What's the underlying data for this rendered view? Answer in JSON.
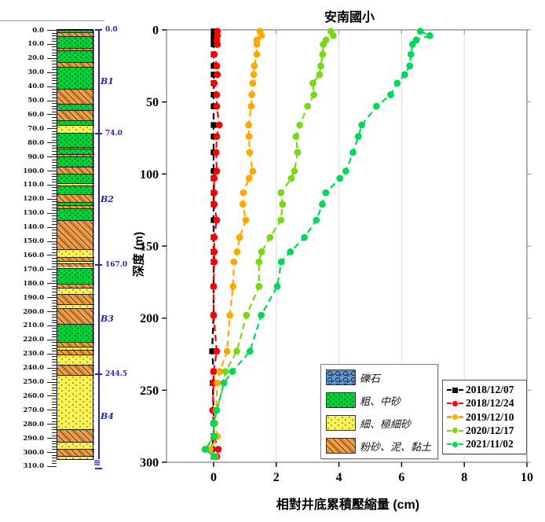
{
  "title": "安南國小",
  "chart_data": {
    "type": "line",
    "title": "安南國小",
    "xlabel": "相對井底累積壓縮量  (cm)",
    "ylabel": "深度 (m)",
    "xlim": [
      -1.5,
      10
    ],
    "ylim": [
      0,
      300
    ],
    "x_ticks": [
      0,
      2,
      4,
      6,
      8,
      10
    ],
    "y_ticks": [
      0,
      50,
      100,
      150,
      200,
      250,
      300
    ],
    "grid": "vertical gridlines only",
    "legend_position": "lower right",
    "orientation": "depth profile, depth increases downward",
    "depths_m": [
      1,
      4,
      7,
      10,
      17,
      25,
      31,
      37,
      45,
      53,
      66,
      74,
      85,
      98,
      103,
      113,
      121,
      132,
      144,
      154,
      161,
      178,
      198,
      223,
      237,
      245,
      264,
      273,
      282,
      291,
      296
    ],
    "series": [
      {
        "name": "2018/12/07",
        "color": "#000000",
        "marker": "square",
        "line": "dashed",
        "values": [
          0,
          0,
          0,
          0,
          0,
          0,
          0,
          0,
          0,
          0,
          0,
          0,
          0,
          0,
          0,
          0,
          0,
          0,
          0,
          0,
          0,
          0,
          0,
          -0.05,
          0,
          -0.03,
          0,
          0,
          0,
          -0.05,
          0
        ]
      },
      {
        "name": "2018/12/24",
        "color": "#ff0000",
        "marker": "circle",
        "line": "dashed",
        "values": [
          0.12,
          0.12,
          0.1,
          0.12,
          0.02,
          0.1,
          0.12,
          0.02,
          0.1,
          0.1,
          0.18,
          0.1,
          0.08,
          0.1,
          0.02,
          0.02,
          0.02,
          0.1,
          0.02,
          0.02,
          0.02,
          0,
          0,
          0.1,
          0,
          0,
          -0.03,
          0,
          0.02,
          0.15,
          0.1
        ]
      },
      {
        "name": "2019/12/10",
        "color": "#ffa800",
        "marker": "circle",
        "line": "dashed",
        "values": [
          1.48,
          1.53,
          1.38,
          1.38,
          1.38,
          1.3,
          1.28,
          1.25,
          1.22,
          1.2,
          1.12,
          1.13,
          1.15,
          1.25,
          1.13,
          0.95,
          0.93,
          1.03,
          0.83,
          0.75,
          0.65,
          0.62,
          0.52,
          0.43,
          0.2,
          0.12,
          0.08,
          0.05,
          0.12,
          -0.1,
          0.05
        ]
      },
      {
        "name": "2020/12/17",
        "color": "#77d916",
        "marker": "circle",
        "line": "dashed",
        "values": [
          3.74,
          3.82,
          3.59,
          3.5,
          3.48,
          3.42,
          3.38,
          3.17,
          3.2,
          3.0,
          2.75,
          2.63,
          2.68,
          2.58,
          2.48,
          2.15,
          2.2,
          2.15,
          1.8,
          1.53,
          1.45,
          1.45,
          1.05,
          0.74,
          0.38,
          0.33,
          0.1,
          0.02,
          0.02,
          -0.28,
          0.02
        ]
      },
      {
        "name": "2021/11/02",
        "color": "#00d957",
        "marker": "circle",
        "line": "dashed",
        "values": [
          6.6,
          6.9,
          6.47,
          6.35,
          6.3,
          6.26,
          6.1,
          5.86,
          5.65,
          5.2,
          4.73,
          4.62,
          4.45,
          4.22,
          4.03,
          3.58,
          3.47,
          3.28,
          2.9,
          2.45,
          2.16,
          2.03,
          1.52,
          1.16,
          0.6,
          0.33,
          0.1,
          0,
          0.02,
          -0.26,
          0.02
        ]
      }
    ]
  },
  "date_legend": [
    "2018/12/07",
    "2018/12/24",
    "2019/12/10",
    "2020/12/17",
    "2021/11/02"
  ],
  "borehole": {
    "max_depth_m": 310,
    "depth_label_step_m": 10,
    "minor_tick_step_m": 2,
    "zones": [
      {
        "label": "B1",
        "from": 0,
        "to": 74
      },
      {
        "label": "B2",
        "from": 74,
        "to": 167
      },
      {
        "label": "B3",
        "from": 167,
        "to": 244.5
      },
      {
        "label": "B4",
        "from": 244.5,
        "to": 305
      }
    ],
    "zone_boundary_labels": [
      "0.0",
      "74.0",
      "167.0",
      "244.5"
    ],
    "zone_boundaries_m": [
      0,
      74,
      167,
      244.5
    ],
    "lithology_legend": [
      {
        "label": "礫石",
        "type": "gravel"
      },
      {
        "label": "粗、中砂",
        "type": "coarse_sand"
      },
      {
        "label": "細、極細砂",
        "type": "fine_sand"
      },
      {
        "label": "粉砂、泥、黏土",
        "type": "silt_mud_clay"
      }
    ],
    "layers": [
      {
        "from": 0,
        "to": 1.5,
        "type": "coarse_sand"
      },
      {
        "from": 1.5,
        "to": 4.5,
        "type": "silt_mud_clay"
      },
      {
        "from": 4.5,
        "to": 13,
        "type": "coarse_sand"
      },
      {
        "from": 13,
        "to": 14.5,
        "type": "silt_mud_clay"
      },
      {
        "from": 14.5,
        "to": 23,
        "type": "coarse_sand"
      },
      {
        "from": 23,
        "to": 26.5,
        "type": "silt_mud_clay"
      },
      {
        "from": 26.5,
        "to": 42,
        "type": "coarse_sand"
      },
      {
        "from": 42,
        "to": 52.5,
        "type": "silt_mud_clay"
      },
      {
        "from": 52.5,
        "to": 57,
        "type": "coarse_sand"
      },
      {
        "from": 57,
        "to": 64,
        "type": "silt_mud_clay"
      },
      {
        "from": 64,
        "to": 67.5,
        "type": "coarse_sand"
      },
      {
        "from": 67.5,
        "to": 73,
        "type": "fine_sand"
      },
      {
        "from": 73,
        "to": 83,
        "type": "coarse_sand"
      },
      {
        "from": 83,
        "to": 84.5,
        "type": "silt_mud_clay"
      },
      {
        "from": 84.5,
        "to": 88,
        "type": "coarse_sand"
      },
      {
        "from": 88,
        "to": 90,
        "type": "silt_mud_clay"
      },
      {
        "from": 90,
        "to": 97,
        "type": "coarse_sand"
      },
      {
        "from": 97,
        "to": 102,
        "type": "silt_mud_clay"
      },
      {
        "from": 102,
        "to": 109,
        "type": "coarse_sand"
      },
      {
        "from": 109,
        "to": 110.5,
        "type": "fine_sand"
      },
      {
        "from": 110.5,
        "to": 117,
        "type": "coarse_sand"
      },
      {
        "from": 117,
        "to": 122.5,
        "type": "silt_mud_clay"
      },
      {
        "from": 122.5,
        "to": 124.5,
        "type": "coarse_sand"
      },
      {
        "from": 124.5,
        "to": 127,
        "type": "silt_mud_clay"
      },
      {
        "from": 127,
        "to": 135,
        "type": "coarse_sand"
      },
      {
        "from": 135,
        "to": 156,
        "type": "silt_mud_clay"
      },
      {
        "from": 156,
        "to": 161.5,
        "type": "fine_sand"
      },
      {
        "from": 161.5,
        "to": 164,
        "type": "silt_mud_clay"
      },
      {
        "from": 164,
        "to": 166,
        "type": "fine_sand"
      },
      {
        "from": 166,
        "to": 169,
        "type": "silt_mud_clay"
      },
      {
        "from": 169,
        "to": 180.5,
        "type": "coarse_sand"
      },
      {
        "from": 180.5,
        "to": 183.5,
        "type": "silt_mud_clay"
      },
      {
        "from": 183.5,
        "to": 187.5,
        "type": "fine_sand"
      },
      {
        "from": 187.5,
        "to": 195,
        "type": "silt_mud_clay"
      },
      {
        "from": 195,
        "to": 198,
        "type": "fine_sand"
      },
      {
        "from": 198,
        "to": 209,
        "type": "silt_mud_clay"
      },
      {
        "from": 209,
        "to": 222,
        "type": "coarse_sand"
      },
      {
        "from": 222,
        "to": 225,
        "type": "silt_mud_clay"
      },
      {
        "from": 225,
        "to": 227.5,
        "type": "fine_sand"
      },
      {
        "from": 227.5,
        "to": 230.5,
        "type": "silt_mud_clay"
      },
      {
        "from": 230.5,
        "to": 238,
        "type": "fine_sand"
      },
      {
        "from": 238,
        "to": 245.5,
        "type": "silt_mud_clay"
      },
      {
        "from": 245.5,
        "to": 284,
        "type": "fine_sand"
      },
      {
        "from": 284,
        "to": 293,
        "type": "silt_mud_clay"
      },
      {
        "from": 293,
        "to": 297.5,
        "type": "fine_sand"
      },
      {
        "from": 297.5,
        "to": 303,
        "type": "silt_mud_clay"
      },
      {
        "from": 303,
        "to": 305.5,
        "type": "fine_sand"
      }
    ]
  },
  "colors": {
    "navy_annotation": "#2626b4",
    "grid": "#dcdcdc",
    "box": "#8a8a8a",
    "coarse_sand": "#00d435",
    "fine_sand": "#fdf351",
    "silt_mud_clay": "#f2a44e",
    "gravel": "#5f96d2"
  }
}
